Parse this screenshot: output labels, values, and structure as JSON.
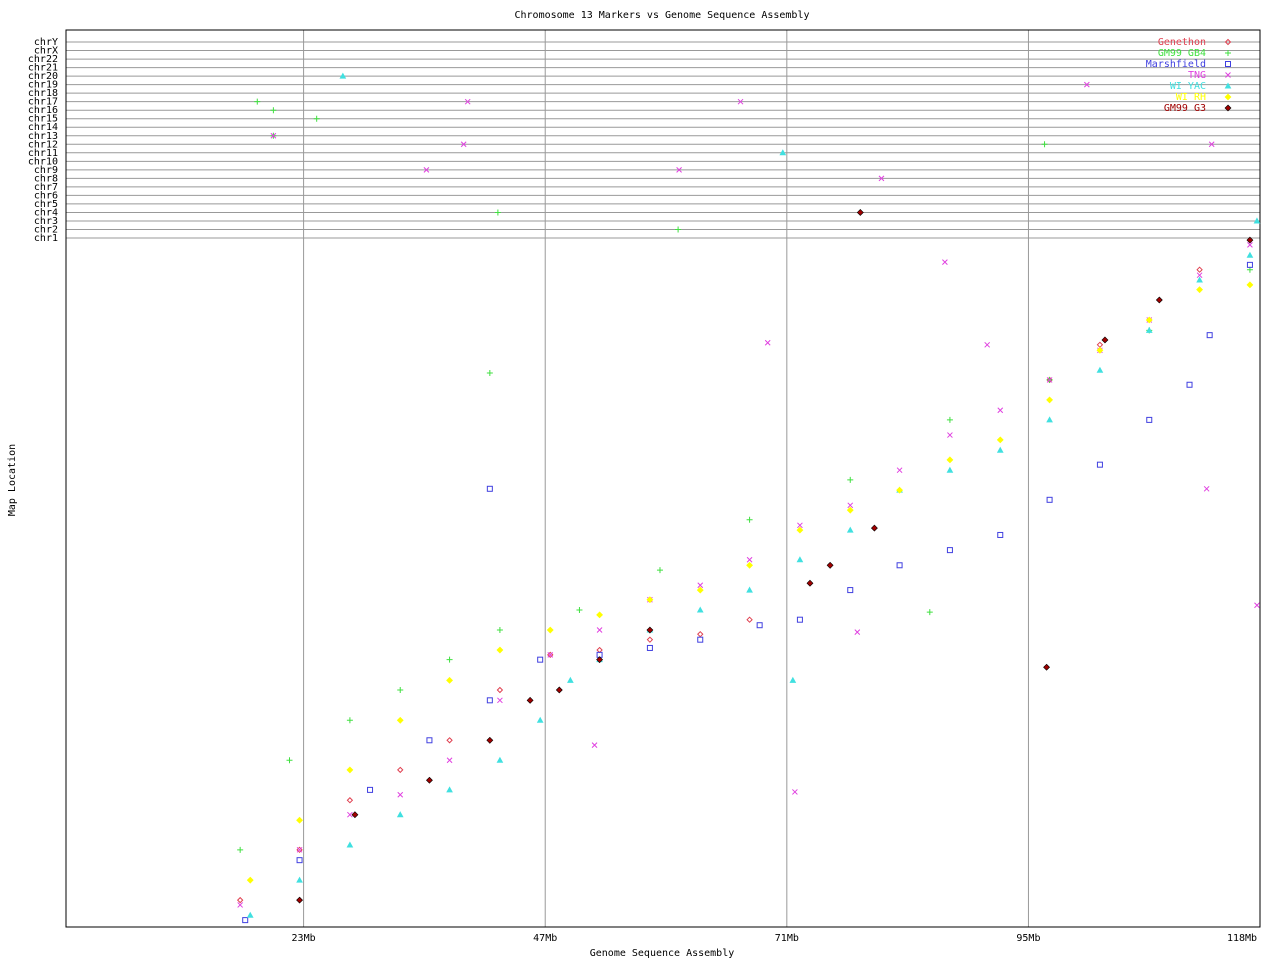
{
  "chart_data": {
    "type": "scatter",
    "title": "Chromosome 13 Markers vs Genome Sequence Assembly",
    "x_label": "Genome Sequence Assembly",
    "y_label": "Map Location",
    "xlim": [
      -0.6,
      118
    ],
    "xticks": [
      {
        "value": 23,
        "label": "23Mb"
      },
      {
        "value": 47,
        "label": "47Mb"
      },
      {
        "value": 71,
        "label": "71Mb"
      },
      {
        "value": 95,
        "label": "95Mb"
      },
      {
        "value": 118,
        "label": "118Mb"
      }
    ],
    "ylim": [
      0,
      100
    ],
    "grid": true,
    "legend": "top-right",
    "chromosomes": [
      "chr1",
      "chr2",
      "chr3",
      "chr4",
      "chr5",
      "chr6",
      "chr7",
      "chr8",
      "chr9",
      "chr10",
      "chr11",
      "chr12",
      "chr13",
      "chr14",
      "chr15",
      "chr16",
      "chr17",
      "chr18",
      "chr19",
      "chr20",
      "chr21",
      "chr22",
      "chrX",
      "chrY"
    ],
    "series": [
      {
        "name": "Genethon",
        "color": "#e04050",
        "marker": "diamond",
        "x": [
          16.7,
          22.6,
          27.6,
          32.6,
          37.5,
          42.5,
          47.5,
          52.4,
          57.4,
          62.4,
          67.3,
          97.1,
          102.1,
          112.0
        ],
        "y": [
          3.9,
          11.2,
          18.4,
          22.8,
          27.1,
          34.4,
          39.5,
          40.2,
          41.7,
          42.5,
          44.6,
          79.4,
          84.5,
          95.4
        ],
        "other_x": [],
        "other_chr": []
      },
      {
        "name": "GM99 GB4",
        "color": "#40e040",
        "marker": "plus",
        "x": [
          16.7,
          21.6,
          27.6,
          32.6,
          37.5,
          42.5,
          50.4,
          58.4,
          67.3,
          77.3,
          87.2,
          97.1,
          107.0,
          117.0,
          41.5,
          85.2
        ],
        "y": [
          11.2,
          24.2,
          30.0,
          34.4,
          38.8,
          43.1,
          46.0,
          51.8,
          59.1,
          64.9,
          73.6,
          79.4,
          86.6,
          95.4,
          80.4,
          45.7
        ],
        "other_x": [
          18.4,
          20.0,
          24.3,
          20.0,
          42.3,
          60.2,
          96.6,
          78.3
        ],
        "other_chr": [
          "chr17",
          "chr16",
          "chr15",
          "chr13",
          "chr4",
          "chr2",
          "chr12",
          "chr4"
        ]
      },
      {
        "name": "Marshfield",
        "color": "#4040e0",
        "marker": "square",
        "x": [
          17.2,
          22.6,
          29.6,
          35.5,
          41.5,
          46.5,
          52.4,
          57.4,
          62.4,
          68.3,
          72.3,
          77.3,
          82.2,
          87.2,
          92.2,
          97.1,
          102.1,
          107.0,
          111.0,
          113.0,
          117.0,
          41.5
        ],
        "y": [
          1.0,
          9.7,
          19.9,
          27.1,
          32.9,
          38.8,
          39.5,
          40.5,
          41.7,
          43.8,
          44.6,
          48.9,
          52.5,
          54.7,
          56.9,
          62.0,
          67.1,
          73.6,
          78.7,
          85.9,
          96.1,
          63.6
        ],
        "other_x": [],
        "other_chr": []
      },
      {
        "name": "TNG",
        "color": "#e040e0",
        "marker": "cross",
        "x": [
          16.7,
          22.6,
          27.6,
          32.6,
          37.5,
          42.5,
          47.5,
          52.4,
          57.4,
          62.4,
          67.3,
          72.3,
          77.3,
          82.2,
          87.2,
          92.2,
          97.1,
          102.1,
          107.0,
          112.0,
          117.0,
          86.7,
          69.1,
          112.7,
          117.7,
          51.9,
          71.8,
          78.0,
          90.9
        ],
        "y": [
          3.2,
          11.2,
          16.3,
          19.2,
          24.2,
          32.9,
          39.5,
          43.1,
          47.5,
          49.6,
          53.3,
          58.3,
          61.2,
          66.3,
          71.4,
          75.0,
          79.4,
          83.7,
          88.1,
          94.6,
          99.0,
          96.5,
          84.8,
          63.6,
          46.7,
          26.4,
          19.6,
          42.8,
          84.5
        ],
        "other_x": [
          20.0,
          39.3,
          35.2,
          38.9,
          60.3,
          66.4,
          80.4,
          100.8,
          113.2
        ],
        "other_chr": [
          "chr13",
          "chr17",
          "chr9",
          "chr12",
          "chr9",
          "chr17",
          "chr8",
          "chr19",
          "chr12"
        ]
      },
      {
        "name": "WI YAC",
        "color": "#40e0e0",
        "marker": "triangle",
        "x": [
          17.7,
          22.6,
          27.6,
          32.6,
          37.5,
          42.5,
          46.5,
          49.5,
          52.4,
          57.4,
          62.4,
          67.3,
          72.3,
          77.3,
          82.2,
          87.2,
          92.2,
          97.1,
          102.1,
          107.0,
          112.0,
          117.0,
          71.6
        ],
        "y": [
          1.7,
          6.8,
          11.9,
          16.3,
          19.9,
          24.2,
          30.0,
          35.8,
          38.8,
          43.1,
          46.0,
          48.9,
          53.3,
          57.6,
          63.4,
          66.3,
          69.2,
          73.6,
          80.8,
          86.6,
          93.9,
          97.5,
          35.8
        ],
        "other_x": [
          26.9,
          70.6,
          117.7
        ],
        "other_chr": [
          "chr20",
          "chr11",
          "chr3"
        ]
      },
      {
        "name": "WI RH",
        "color": "#ffff00",
        "marker": "filled",
        "x": [
          17.7,
          22.6,
          27.6,
          32.6,
          37.5,
          42.5,
          47.5,
          52.4,
          57.4,
          62.4,
          67.3,
          72.3,
          77.3,
          82.2,
          87.2,
          92.2,
          97.1,
          102.1,
          107.0,
          112.0,
          117.0
        ],
        "y": [
          6.8,
          15.5,
          22.8,
          30.0,
          35.8,
          40.2,
          43.1,
          45.3,
          47.5,
          48.9,
          52.5,
          57.6,
          60.5,
          63.4,
          67.8,
          70.7,
          76.5,
          83.7,
          88.1,
          92.5,
          93.2
        ],
        "other_x": [],
        "other_chr": []
      },
      {
        "name": "GM99 G3",
        "color": "#a00000",
        "marker": "filled",
        "x": [
          22.6,
          28.1,
          35.5,
          41.5,
          45.5,
          48.4,
          52.4,
          57.4,
          73.3,
          75.3,
          79.7,
          96.8,
          102.6,
          108.0,
          117.0
        ],
        "y": [
          3.9,
          16.3,
          21.3,
          27.1,
          32.9,
          34.4,
          38.8,
          43.1,
          49.9,
          52.5,
          57.9,
          37.7,
          85.2,
          91.0,
          99.7
        ],
        "other_x": [
          78.3
        ],
        "other_chr": [
          "chr4"
        ]
      }
    ]
  }
}
